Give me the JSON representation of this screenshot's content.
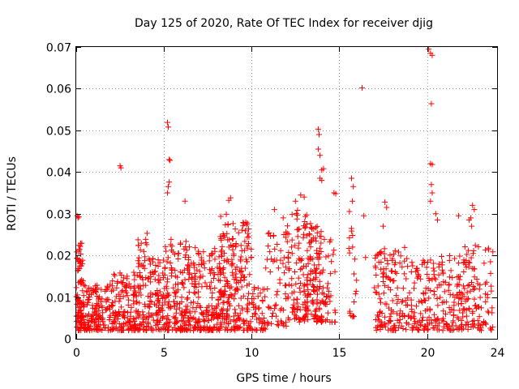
{
  "chart_data": {
    "type": "scatter",
    "title": "Day 125 of 2020, Rate Of TEC Index for receiver djig",
    "xlabel": "GPS time / hours",
    "ylabel": "ROTI / TECUs",
    "xlim": [
      0,
      24
    ],
    "ylim": [
      0,
      0.07
    ],
    "xticks": [
      0,
      5,
      10,
      15,
      20,
      24
    ],
    "xtick_labels": [
      "0",
      "5",
      "10",
      "15",
      "20",
      "24"
    ],
    "yticks": [
      0,
      0.01,
      0.02,
      0.03,
      0.04,
      0.05,
      0.06,
      0.07
    ],
    "ytick_labels": [
      "0",
      "0.01",
      "0.02",
      "0.03",
      "0.04",
      "0.05",
      "0.06",
      "0.07"
    ],
    "grid": true,
    "marker": "+",
    "color": "#ff0000",
    "density_segments": [
      {
        "x": [
          0.0,
          0.4
        ],
        "y": [
          0.002,
          0.023
        ],
        "count": 90
      },
      {
        "x": [
          0.4,
          1.5
        ],
        "y": [
          0.002,
          0.013
        ],
        "count": 110
      },
      {
        "x": [
          1.5,
          3.5
        ],
        "y": [
          0.002,
          0.016
        ],
        "count": 170
      },
      {
        "x": [
          3.5,
          4.2
        ],
        "y": [
          0.002,
          0.027
        ],
        "count": 80
      },
      {
        "x": [
          4.2,
          5.0
        ],
        "y": [
          0.002,
          0.02
        ],
        "count": 80
      },
      {
        "x": [
          5.0,
          6.5
        ],
        "y": [
          0.002,
          0.024
        ],
        "count": 170
      },
      {
        "x": [
          6.5,
          8.2
        ],
        "y": [
          0.002,
          0.022
        ],
        "count": 170
      },
      {
        "x": [
          8.2,
          9.0
        ],
        "y": [
          0.002,
          0.03
        ],
        "count": 110
      },
      {
        "x": [
          9.0,
          10.0
        ],
        "y": [
          0.002,
          0.028
        ],
        "count": 110
      },
      {
        "x": [
          10.0,
          10.8
        ],
        "y": [
          0.002,
          0.013
        ],
        "count": 45
      },
      {
        "x": [
          10.8,
          12.0
        ],
        "y": [
          0.003,
          0.026
        ],
        "count": 60
      },
      {
        "x": [
          12.0,
          13.2
        ],
        "y": [
          0.004,
          0.031
        ],
        "count": 110
      },
      {
        "x": [
          13.2,
          14.0
        ],
        "y": [
          0.004,
          0.028
        ],
        "count": 110
      },
      {
        "x": [
          14.0,
          14.8
        ],
        "y": [
          0.004,
          0.024
        ],
        "count": 40
      },
      {
        "x": [
          15.5,
          16.0
        ],
        "y": [
          0.005,
          0.036
        ],
        "count": 20
      },
      {
        "x": [
          17.0,
          19.0
        ],
        "y": [
          0.002,
          0.022
        ],
        "count": 140
      },
      {
        "x": [
          19.0,
          20.5
        ],
        "y": [
          0.002,
          0.019
        ],
        "count": 100
      },
      {
        "x": [
          20.5,
          22.0
        ],
        "y": [
          0.002,
          0.02
        ],
        "count": 100
      },
      {
        "x": [
          22.0,
          23.8
        ],
        "y": [
          0.002,
          0.023
        ],
        "count": 110
      }
    ],
    "points": [
      [
        0.05,
        0.0295
      ],
      [
        0.1,
        0.029
      ],
      [
        0.15,
        0.0293
      ],
      [
        2.5,
        0.0415
      ],
      [
        2.55,
        0.041
      ],
      [
        5.2,
        0.0519
      ],
      [
        5.25,
        0.0508
      ],
      [
        5.3,
        0.043
      ],
      [
        5.35,
        0.0428
      ],
      [
        5.3,
        0.0376
      ],
      [
        5.25,
        0.0365
      ],
      [
        5.2,
        0.035
      ],
      [
        6.2,
        0.033
      ],
      [
        8.7,
        0.0332
      ],
      [
        8.8,
        0.0338
      ],
      [
        11.3,
        0.031
      ],
      [
        11.8,
        0.029
      ],
      [
        12.5,
        0.033
      ],
      [
        12.8,
        0.0345
      ],
      [
        13.0,
        0.034
      ],
      [
        13.8,
        0.0503
      ],
      [
        13.85,
        0.049
      ],
      [
        13.8,
        0.0455
      ],
      [
        13.9,
        0.044
      ],
      [
        14.0,
        0.0405
      ],
      [
        14.1,
        0.0408
      ],
      [
        13.9,
        0.0385
      ],
      [
        14.0,
        0.038
      ],
      [
        14.7,
        0.035
      ],
      [
        14.8,
        0.0348
      ],
      [
        15.7,
        0.0385
      ],
      [
        15.8,
        0.0365
      ],
      [
        15.75,
        0.033
      ],
      [
        16.3,
        0.0602
      ],
      [
        16.4,
        0.0295
      ],
      [
        16.5,
        0.0195
      ],
      [
        17.6,
        0.0328
      ],
      [
        17.7,
        0.0315
      ],
      [
        17.5,
        0.027
      ],
      [
        20.1,
        0.0695
      ],
      [
        20.2,
        0.0685
      ],
      [
        20.3,
        0.068
      ],
      [
        20.25,
        0.0564
      ],
      [
        20.2,
        0.042
      ],
      [
        20.3,
        0.0418
      ],
      [
        20.25,
        0.037
      ],
      [
        20.3,
        0.035
      ],
      [
        20.2,
        0.033
      ],
      [
        20.5,
        0.03
      ],
      [
        20.6,
        0.0285
      ],
      [
        21.8,
        0.0295
      ],
      [
        22.4,
        0.0285
      ],
      [
        22.5,
        0.029
      ],
      [
        22.6,
        0.032
      ],
      [
        22.7,
        0.031
      ],
      [
        22.55,
        0.027
      ]
    ]
  }
}
